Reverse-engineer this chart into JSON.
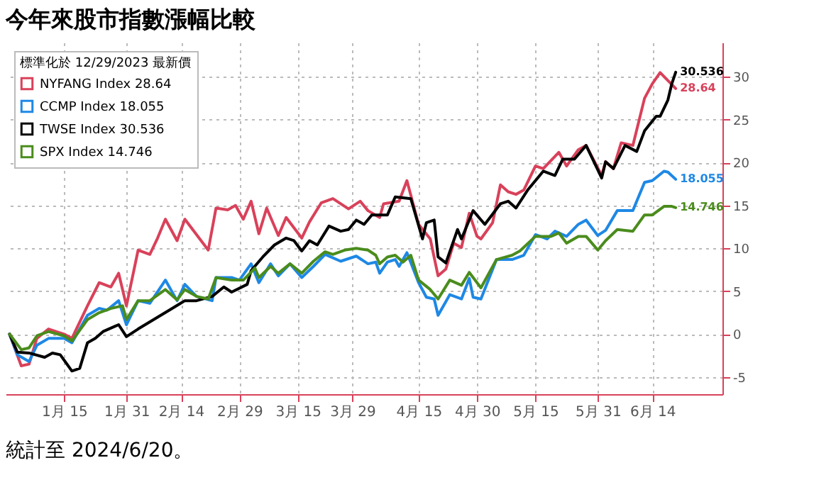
{
  "chart_data": {
    "type": "line",
    "title": "今年來股市指數漲幅比較",
    "annotations": [
      "統計至 2024/6/20。"
    ],
    "legend_title": "標準化於 12/29/2023 最新價",
    "legend": "top left",
    "grid": true,
    "marker": "none",
    "line_style": "solid",
    "xlim": [
      "2023-12-31",
      "2024-07-02"
    ],
    "xticks": [
      {
        "value": "2024-01-15",
        "label": "1月 15"
      },
      {
        "value": "2024-01-31",
        "label": "1月 31"
      },
      {
        "value": "2024-02-14",
        "label": "2月 14"
      },
      {
        "value": "2024-02-29",
        "label": "2月 29"
      },
      {
        "value": "2024-03-15",
        "label": "3月 15"
      },
      {
        "value": "2024-03-29",
        "label": "3月 29"
      },
      {
        "value": "2024-04-15",
        "label": "4月 15"
      },
      {
        "value": "2024-04-30",
        "label": "4月 30"
      },
      {
        "value": "2024-05-15",
        "label": "5月 15"
      },
      {
        "value": "2024-05-31",
        "label": "5月 31"
      },
      {
        "value": "2024-06-14",
        "label": "6月 14"
      }
    ],
    "ylim": [
      -7,
      34
    ],
    "yticks": [
      -5,
      0,
      5,
      10,
      15,
      20,
      25,
      30
    ],
    "series": [
      {
        "name": "NYFANG Index 28.64",
        "color": "#d9415a",
        "x": [
          "2024-01-01",
          "2024-01-04",
          "2024-01-06",
          "2024-01-08",
          "2024-01-11",
          "2024-01-15",
          "2024-01-17",
          "2024-01-21",
          "2024-01-24",
          "2024-01-27",
          "2024-01-29",
          "2024-01-31",
          "2024-02-03",
          "2024-02-06",
          "2024-02-08",
          "2024-02-10",
          "2024-02-13",
          "2024-02-15",
          "2024-02-21",
          "2024-02-23",
          "2024-02-26",
          "2024-02-28",
          "2024-03-01",
          "2024-03-03",
          "2024-03-05",
          "2024-03-07",
          "2024-03-10",
          "2024-03-12",
          "2024-03-16",
          "2024-03-18",
          "2024-03-21",
          "2024-03-24",
          "2024-03-28",
          "2024-03-31",
          "2024-04-02",
          "2024-04-05",
          "2024-04-06",
          "2024-04-10",
          "2024-04-12",
          "2024-04-15",
          "2024-04-18",
          "2024-04-20",
          "2024-04-22",
          "2024-04-24",
          "2024-04-26",
          "2024-04-28",
          "2024-04-30",
          "2024-05-01",
          "2024-05-04",
          "2024-05-06",
          "2024-05-08",
          "2024-05-10",
          "2024-05-12",
          "2024-05-15",
          "2024-05-17",
          "2024-05-21",
          "2024-05-23",
          "2024-05-26",
          "2024-05-28",
          "2024-06-01",
          "2024-06-02",
          "2024-06-04",
          "2024-06-06",
          "2024-06-09",
          "2024-06-12",
          "2024-06-14",
          "2024-06-16",
          "2024-06-20"
        ],
        "values": [
          0,
          -3.7,
          -3.5,
          -0.5,
          0.6,
          0,
          -0.5,
          3.3,
          6,
          5.5,
          7.1,
          3.3,
          9.8,
          9.3,
          11.2,
          13.4,
          10.9,
          13.4,
          9.8,
          14.7,
          14.5,
          15,
          13.4,
          15.5,
          11.7,
          14.7,
          11.5,
          13.6,
          11.2,
          13.1,
          15.3,
          15.8,
          14.6,
          15.5,
          14.4,
          13.6,
          15.2,
          15.5,
          17.9,
          12.8,
          11.1,
          6.8,
          7.6,
          10.6,
          10.1,
          14.1,
          11.4,
          11.1,
          13,
          17.4,
          16.6,
          16.3,
          16.8,
          19.6,
          19.3,
          21.2,
          19.6,
          21.5,
          22,
          18.5,
          20.1,
          19.3,
          22.3,
          22,
          27.5,
          29.2,
          30.5,
          28.64
        ],
        "value_labels": [
          null,
          null,
          null,
          null,
          null,
          null,
          null,
          null,
          null,
          null,
          null,
          null,
          null,
          null,
          null,
          null,
          null,
          null,
          null,
          null,
          null,
          null,
          null,
          null,
          null,
          null,
          null,
          null,
          null,
          null,
          null,
          null,
          null,
          null,
          null,
          null,
          null,
          null,
          null,
          null,
          null,
          null,
          null,
          null,
          null,
          null,
          null,
          null,
          null,
          null,
          null,
          null,
          null,
          null,
          null,
          null,
          null,
          null,
          null,
          null,
          null,
          null,
          null,
          null,
          null,
          null,
          null,
          "28.64"
        ]
      },
      {
        "name": "CCMP Index 18.055",
        "color": "#1e88e5",
        "x": [
          "2024-01-01",
          "2024-01-03",
          "2024-01-06",
          "2024-01-08",
          "2024-01-11",
          "2024-01-15",
          "2024-01-17",
          "2024-01-21",
          "2024-01-24",
          "2024-01-26",
          "2024-01-29",
          "2024-01-31",
          "2024-02-03",
          "2024-02-06",
          "2024-02-10",
          "2024-02-13",
          "2024-02-15",
          "2024-02-18",
          "2024-02-22",
          "2024-02-23",
          "2024-02-27",
          "2024-02-29",
          "2024-03-03",
          "2024-03-05",
          "2024-03-08",
          "2024-03-10",
          "2024-03-13",
          "2024-03-16",
          "2024-03-19",
          "2024-03-22",
          "2024-03-26",
          "2024-03-30",
          "2024-04-02",
          "2024-04-04",
          "2024-04-05",
          "2024-04-07",
          "2024-04-09",
          "2024-04-10",
          "2024-04-12",
          "2024-04-15",
          "2024-04-17",
          "2024-04-19",
          "2024-04-20",
          "2024-04-23",
          "2024-04-26",
          "2024-04-28",
          "2024-04-29",
          "2024-05-01",
          "2024-05-05",
          "2024-05-09",
          "2024-05-12",
          "2024-05-15",
          "2024-05-18",
          "2024-05-20",
          "2024-05-23",
          "2024-05-26",
          "2024-05-28",
          "2024-05-31",
          "2024-06-02",
          "2024-06-05",
          "2024-06-09",
          "2024-06-12",
          "2024-06-14",
          "2024-06-17",
          "2024-06-18",
          "2024-06-20"
        ],
        "values": [
          0,
          -2.4,
          -3.2,
          -1.3,
          -0.5,
          -0.5,
          -1,
          2.2,
          3,
          2.8,
          3.9,
          1.1,
          3.9,
          3.6,
          6.3,
          3.9,
          5.8,
          4.4,
          3.9,
          6.6,
          6.6,
          6.3,
          8.2,
          6,
          8.2,
          6.8,
          8.2,
          6.6,
          7.9,
          9.3,
          8.5,
          9.1,
          8.2,
          8.4,
          7.1,
          8.4,
          8.7,
          7.9,
          9.5,
          6,
          4.3,
          4.1,
          2.2,
          4.6,
          4.1,
          6.5,
          4.3,
          4.1,
          8.7,
          8.7,
          9.2,
          11.6,
          11.1,
          12,
          11.4,
          12.8,
          13.3,
          11.5,
          12.1,
          14.4,
          14.4,
          17.7,
          17.9,
          19,
          18.9,
          18.055
        ],
        "value_labels": [
          null,
          null,
          null,
          null,
          null,
          null,
          null,
          null,
          null,
          null,
          null,
          null,
          null,
          null,
          null,
          null,
          null,
          null,
          null,
          null,
          null,
          null,
          null,
          null,
          null,
          null,
          null,
          null,
          null,
          null,
          null,
          null,
          null,
          null,
          null,
          null,
          null,
          null,
          null,
          null,
          null,
          null,
          null,
          null,
          null,
          null,
          null,
          null,
          null,
          null,
          null,
          null,
          null,
          null,
          null,
          null,
          null,
          null,
          null,
          null,
          null,
          null,
          null,
          null,
          null,
          "18.055"
        ]
      },
      {
        "name": "TWSE Index 30.536",
        "color": "#000000",
        "x": [
          "2024-01-01",
          "2024-01-03",
          "2024-01-06",
          "2024-01-10",
          "2024-01-12",
          "2024-01-14",
          "2024-01-17",
          "2024-01-19",
          "2024-01-21",
          "2024-01-23",
          "2024-01-25",
          "2024-01-28",
          "2024-01-29",
          "2024-01-31",
          "2024-02-03",
          "2024-02-07",
          "2024-02-11",
          "2024-02-15",
          "2024-02-18",
          "2024-02-22",
          "2024-02-25",
          "2024-02-27",
          "2024-03-02",
          "2024-03-03",
          "2024-03-06",
          "2024-03-09",
          "2024-03-12",
          "2024-03-14",
          "2024-03-16",
          "2024-03-18",
          "2024-03-20",
          "2024-03-23",
          "2024-03-26",
          "2024-03-28",
          "2024-03-30",
          "2024-04-01",
          "2024-04-03",
          "2024-04-07",
          "2024-04-09",
          "2024-04-13",
          "2024-04-16",
          "2024-04-17",
          "2024-04-19",
          "2024-04-20",
          "2024-04-22",
          "2024-04-25",
          "2024-04-26",
          "2024-04-29",
          "2024-05-02",
          "2024-05-06",
          "2024-05-08",
          "2024-05-10",
          "2024-05-13",
          "2024-05-17",
          "2024-05-20",
          "2024-05-22",
          "2024-05-25",
          "2024-05-28",
          "2024-06-01",
          "2024-06-02",
          "2024-06-04",
          "2024-06-07",
          "2024-06-10",
          "2024-06-12",
          "2024-06-15",
          "2024-06-16",
          "2024-06-18",
          "2024-06-19",
          "2024-06-20"
        ],
        "values": [
          0,
          -2.1,
          -2.2,
          -2.7,
          -2.2,
          -2.4,
          -4.3,
          -4,
          -1,
          -0.5,
          0.3,
          0.9,
          1.1,
          -0.3,
          0.6,
          1.7,
          2.8,
          3.9,
          3.9,
          4.4,
          5.5,
          4.9,
          5.8,
          7.4,
          9,
          10.4,
          11.2,
          10.9,
          9.7,
          10.9,
          10.4,
          12.6,
          12,
          12.2,
          13.3,
          12.8,
          13.9,
          13.9,
          16,
          15.8,
          11.1,
          13,
          13.3,
          9,
          8.3,
          12.2,
          11.1,
          14.4,
          12.8,
          15.2,
          15.5,
          14.7,
          16.8,
          19,
          18.5,
          20.4,
          20.4,
          22,
          18.2,
          20.1,
          19.3,
          22,
          21.3,
          23.7,
          25.4,
          25.4,
          27.3,
          29.2,
          30.536
        ],
        "value_labels": [
          null,
          null,
          null,
          null,
          null,
          null,
          null,
          null,
          null,
          null,
          null,
          null,
          null,
          null,
          null,
          null,
          null,
          null,
          null,
          null,
          null,
          null,
          null,
          null,
          null,
          null,
          null,
          null,
          null,
          null,
          null,
          null,
          null,
          null,
          null,
          null,
          null,
          null,
          null,
          null,
          null,
          null,
          null,
          null,
          null,
          null,
          null,
          null,
          null,
          null,
          null,
          null,
          null,
          null,
          null,
          null,
          null,
          null,
          null,
          null,
          null,
          null,
          null,
          null,
          null,
          null,
          null,
          null,
          "30.536"
        ]
      },
      {
        "name": "SPX Index 14.746",
        "color": "#4a8c1c",
        "x": [
          "2024-01-01",
          "2024-01-04",
          "2024-01-06",
          "2024-01-08",
          "2024-01-11",
          "2024-01-15",
          "2024-01-17",
          "2024-01-21",
          "2024-01-24",
          "2024-01-27",
          "2024-01-30",
          "2024-01-31",
          "2024-02-03",
          "2024-02-06",
          "2024-02-10",
          "2024-02-13",
          "2024-02-15",
          "2024-02-18",
          "2024-02-21",
          "2024-02-23",
          "2024-02-27",
          "2024-03-01",
          "2024-03-04",
          "2024-03-05",
          "2024-03-08",
          "2024-03-10",
          "2024-03-13",
          "2024-03-16",
          "2024-03-19",
          "2024-03-22",
          "2024-03-24",
          "2024-03-27",
          "2024-03-30",
          "2024-04-02",
          "2024-04-04",
          "2024-04-05",
          "2024-04-07",
          "2024-04-09",
          "2024-04-11",
          "2024-04-13",
          "2024-04-15",
          "2024-04-18",
          "2024-04-20",
          "2024-04-23",
          "2024-04-26",
          "2024-04-28",
          "2024-05-01",
          "2024-05-05",
          "2024-05-09",
          "2024-05-11",
          "2024-05-15",
          "2024-05-19",
          "2024-05-21",
          "2024-05-23",
          "2024-05-26",
          "2024-05-28",
          "2024-05-31",
          "2024-06-02",
          "2024-06-05",
          "2024-06-09",
          "2024-06-12",
          "2024-06-14",
          "2024-06-17",
          "2024-06-19",
          "2024-06-20"
        ],
        "values": [
          0,
          -1.8,
          -1.6,
          -0.2,
          0.3,
          -0.2,
          -0.8,
          1.7,
          2.5,
          3,
          3.3,
          1.7,
          3.9,
          3.9,
          5.2,
          4,
          5.2,
          4.4,
          4.1,
          6.6,
          6.3,
          6.3,
          7.7,
          6.6,
          7.9,
          7.1,
          8.2,
          7.1,
          8.5,
          9.6,
          9.3,
          9.8,
          10,
          9.8,
          9.2,
          8.2,
          9,
          9.2,
          8.4,
          9.2,
          6.3,
          5.2,
          4.1,
          6.3,
          5.7,
          7.2,
          5.4,
          8.7,
          9.2,
          9.7,
          11.4,
          11.4,
          11.8,
          10.6,
          11.4,
          11.4,
          9.8,
          10.9,
          12.2,
          12,
          13.9,
          13.9,
          14.9,
          14.9,
          14.746
        ],
        "value_labels": [
          null,
          null,
          null,
          null,
          null,
          null,
          null,
          null,
          null,
          null,
          null,
          null,
          null,
          null,
          null,
          null,
          null,
          null,
          null,
          null,
          null,
          null,
          null,
          null,
          null,
          null,
          null,
          null,
          null,
          null,
          null,
          null,
          null,
          null,
          null,
          null,
          null,
          null,
          null,
          null,
          null,
          null,
          null,
          null,
          null,
          null,
          null,
          null,
          null,
          null,
          null,
          null,
          null,
          null,
          null,
          null,
          null,
          null,
          null,
          null,
          null,
          null,
          null,
          null,
          "14.746"
        ]
      }
    ]
  }
}
